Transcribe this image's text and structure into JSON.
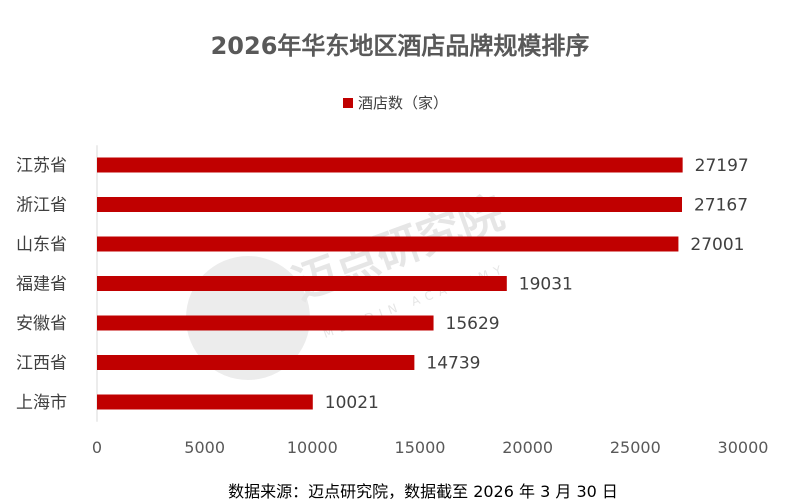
{
  "chart_data": {
    "type": "bar",
    "orientation": "horizontal",
    "title": "2026年华东地区酒店品牌规模排序",
    "categories": [
      "江苏省",
      "浙江省",
      "山东省",
      "福建省",
      "安徽省",
      "江西省",
      "上海市"
    ],
    "series": [
      {
        "name": "酒店数（家）",
        "values": [
          27197,
          27167,
          27001,
          19031,
          15629,
          14739,
          10021
        ],
        "color": "#c00000"
      }
    ],
    "xlim": [
      0,
      30000
    ],
    "xticks": [
      "0",
      "5000",
      "10000",
      "15000",
      "20000",
      "25000",
      "30000"
    ],
    "grid": false,
    "legend_position": "top-center",
    "data_labels": true
  },
  "watermark": {
    "text": "迈点研究院",
    "subtext": "MEADIN ACADEMY"
  },
  "source_note": "数据来源：迈点研究院，数据截至 2026 年 3 月 30 日"
}
